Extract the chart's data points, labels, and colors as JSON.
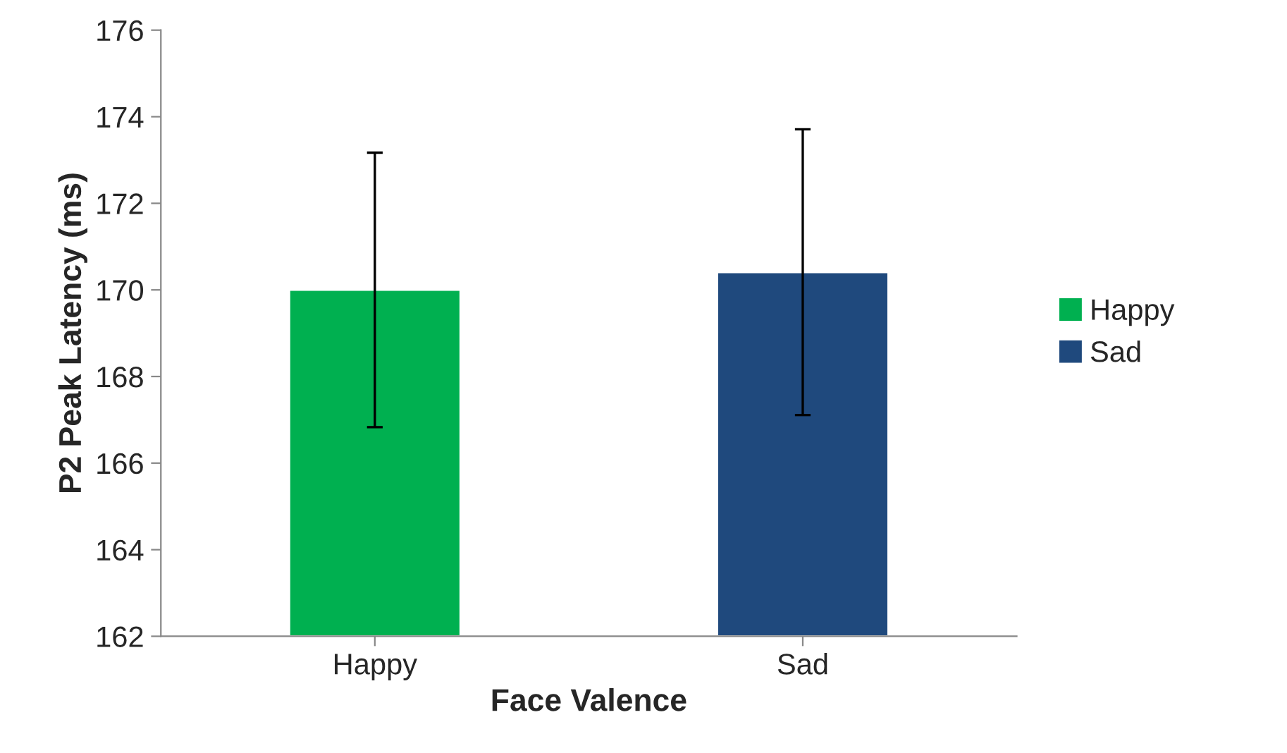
{
  "chart_data": {
    "type": "bar",
    "xlabel": "Face Valence",
    "ylabel": "P2 Peak Latency (ms)",
    "categories": [
      "Happy",
      "Sad"
    ],
    "series": [
      {
        "name": "Happy",
        "color": "#00b050",
        "values": [
          170.0,
          null
        ],
        "errors": [
          3.17,
          null
        ]
      },
      {
        "name": "Sad",
        "color": "#1f497d",
        "values": [
          null,
          170.41
        ],
        "errors": [
          null,
          3.3
        ]
      }
    ],
    "ylim": [
      162,
      176
    ],
    "yticks": [
      162,
      164,
      166,
      168,
      170,
      172,
      174,
      176
    ],
    "grid": false,
    "legend": "right"
  }
}
